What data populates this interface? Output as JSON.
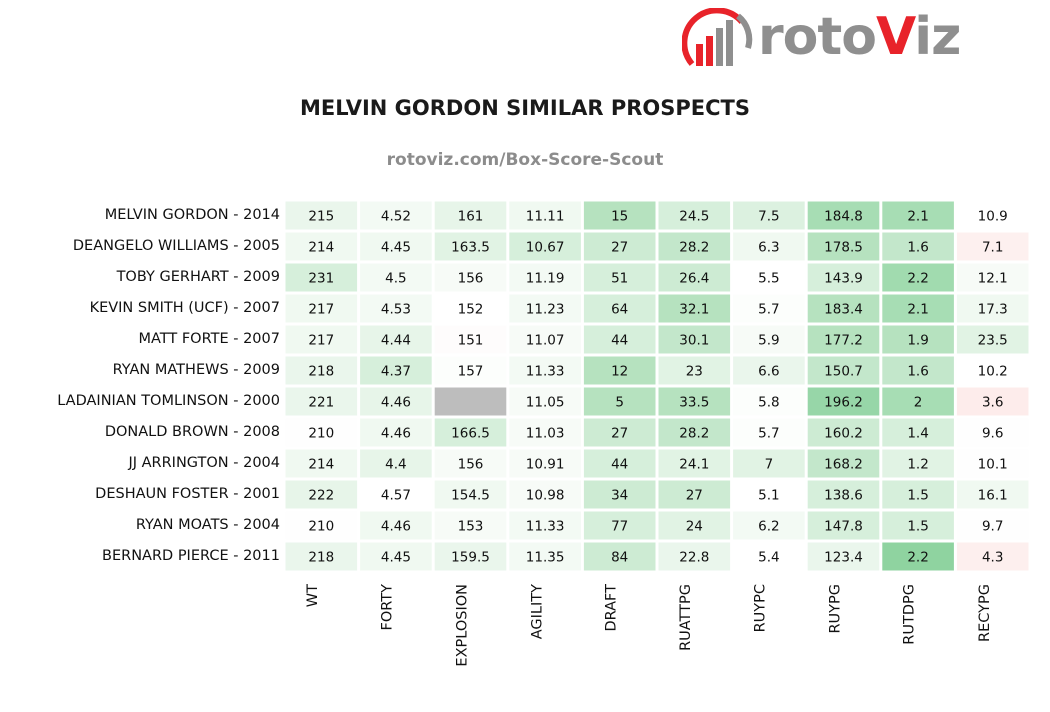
{
  "logo": {
    "brand_prefix": "roto",
    "brand_v": "V",
    "brand_suffix": "iz"
  },
  "chart_data": {
    "type": "heatmap",
    "title": "MELVIN GORDON SIMILAR PROSPECTS",
    "subtitle": "rotoviz.com/Box-Score-Scout",
    "columns": [
      "WT",
      "FORTY",
      "EXPLOSION",
      "AGILITY",
      "DRAFT",
      "RUATTPG",
      "RUYPC",
      "RUYPG",
      "RUTDPG",
      "RECYPG"
    ],
    "rows": [
      "MELVIN GORDON - 2014",
      "DEANGELO WILLIAMS - 2005",
      "TOBY GERHART - 2009",
      "KEVIN SMITH (UCF) - 2007",
      "MATT FORTE - 2007",
      "RYAN MATHEWS - 2009",
      "LADAINIAN TOMLINSON - 2000",
      "DONALD BROWN - 2008",
      "JJ ARRINGTON - 2004",
      "DESHAUN FOSTER - 2001",
      "RYAN MOATS - 2004",
      "BERNARD PIERCE - 2011"
    ],
    "values": [
      [
        "215",
        "4.52",
        "161",
        "11.11",
        "15",
        "24.5",
        "7.5",
        "184.8",
        "2.1",
        "10.9"
      ],
      [
        "214",
        "4.45",
        "163.5",
        "10.67",
        "27",
        "28.2",
        "6.3",
        "178.5",
        "1.6",
        "7.1"
      ],
      [
        "231",
        "4.5",
        "156",
        "11.19",
        "51",
        "26.4",
        "5.5",
        "143.9",
        "2.2",
        "12.1"
      ],
      [
        "217",
        "4.53",
        "152",
        "11.23",
        "64",
        "32.1",
        "5.7",
        "183.4",
        "2.1",
        "17.3"
      ],
      [
        "217",
        "4.44",
        "151",
        "11.07",
        "44",
        "30.1",
        "5.9",
        "177.2",
        "1.9",
        "23.5"
      ],
      [
        "218",
        "4.37",
        "157",
        "11.33",
        "12",
        "23",
        "6.6",
        "150.7",
        "1.6",
        "10.2"
      ],
      [
        "221",
        "4.46",
        "",
        "11.05",
        "5",
        "33.5",
        "5.8",
        "196.2",
        "2",
        "3.6"
      ],
      [
        "210",
        "4.46",
        "166.5",
        "11.03",
        "27",
        "28.2",
        "5.7",
        "160.2",
        "1.4",
        "9.6"
      ],
      [
        "214",
        "4.4",
        "156",
        "10.91",
        "44",
        "24.1",
        "7",
        "168.2",
        "1.2",
        "10.1"
      ],
      [
        "222",
        "4.57",
        "154.5",
        "10.98",
        "34",
        "27",
        "5.1",
        "138.6",
        "1.5",
        "16.1"
      ],
      [
        "210",
        "4.46",
        "153",
        "11.33",
        "77",
        "24",
        "6.2",
        "147.8",
        "1.5",
        "9.7"
      ],
      [
        "218",
        "4.45",
        "159.5",
        "11.35",
        "84",
        "22.8",
        "5.4",
        "123.4",
        "2.2",
        "4.3"
      ]
    ],
    "cell_colors": [
      [
        "#eaf6ec",
        "#f3faf4",
        "#e7f5e9",
        "#f0f9f1",
        "#b6e2bf",
        "#d6efdb",
        "#dcf1e0",
        "#a7ddb4",
        "#a7ddb4",
        "#ffffff"
      ],
      [
        "#f0f9f1",
        "#f0f9f1",
        "#e1f3e4",
        "#d6efdb",
        "#cdebd3",
        "#c3e7cb",
        "#f0f9f1",
        "#b6e2bf",
        "#c3e7cb",
        "#fdf0ef"
      ],
      [
        "#d6efdb",
        "#f3faf4",
        "#f7fbf7",
        "#f3faf4",
        "#d6efdb",
        "#cdebd3",
        "#ffffff",
        "#d6efdb",
        "#a1dbaf",
        "#f7fbf7"
      ],
      [
        "#f0f9f1",
        "#f3faf4",
        "#ffffff",
        "#f3faf4",
        "#d6efdb",
        "#b6e2bf",
        "#fcfefc",
        "#b6e2bf",
        "#a7ddb4",
        "#f0f9f1"
      ],
      [
        "#f0f9f1",
        "#e7f5e9",
        "#fefcfc",
        "#f7fbf7",
        "#d6efdb",
        "#c3e7cb",
        "#f7fbf7",
        "#b6e2bf",
        "#b6e2bf",
        "#e1f3e4"
      ],
      [
        "#eaf6ec",
        "#d6efdb",
        "#fcfefc",
        "#f3faf4",
        "#b6e2bf",
        "#e1f3e4",
        "#eaf6ec",
        "#c3e7cb",
        "#c3e7cb",
        "#ffffff"
      ],
      [
        "#eaf6ec",
        "#e7f5e9",
        "#bdbdbd",
        "#f7fbf7",
        "#b6e2bf",
        "#b6e2bf",
        "#fcfefc",
        "#97d6a8",
        "#a7ddb4",
        "#fdeceb"
      ],
      [
        "#fefefe",
        "#f0f9f1",
        "#d6efdb",
        "#f7fbf7",
        "#cdebd3",
        "#c3e7cb",
        "#fcfefc",
        "#cdebd3",
        "#d6efdb",
        "#fefefe"
      ],
      [
        "#f0f9f1",
        "#e7f5e9",
        "#f7fbf7",
        "#f7fbf7",
        "#d6efdb",
        "#e1f3e4",
        "#e1f3e4",
        "#c3e7cb",
        "#e1f3e4",
        "#fefefe"
      ],
      [
        "#e7f5e9",
        "#ffffff",
        "#f0f9f1",
        "#f7fbf7",
        "#cdebd3",
        "#cdebd3",
        "#ffffff",
        "#d6efdb",
        "#d6efdb",
        "#f0f9f1"
      ],
      [
        "#fefefe",
        "#f0f9f1",
        "#f7fbf7",
        "#f3faf4",
        "#d6efdb",
        "#e1f3e4",
        "#f3faf4",
        "#d6efdb",
        "#d6efdb",
        "#fefefe"
      ],
      [
        "#eaf6ec",
        "#f0f9f1",
        "#eaf6ec",
        "#f3faf4",
        "#cdebd3",
        "#eaf6ec",
        "#ffffff",
        "#eaf6ec",
        "#8fd3a0",
        "#fdefee"
      ]
    ],
    "grid": false,
    "legend": "none"
  }
}
